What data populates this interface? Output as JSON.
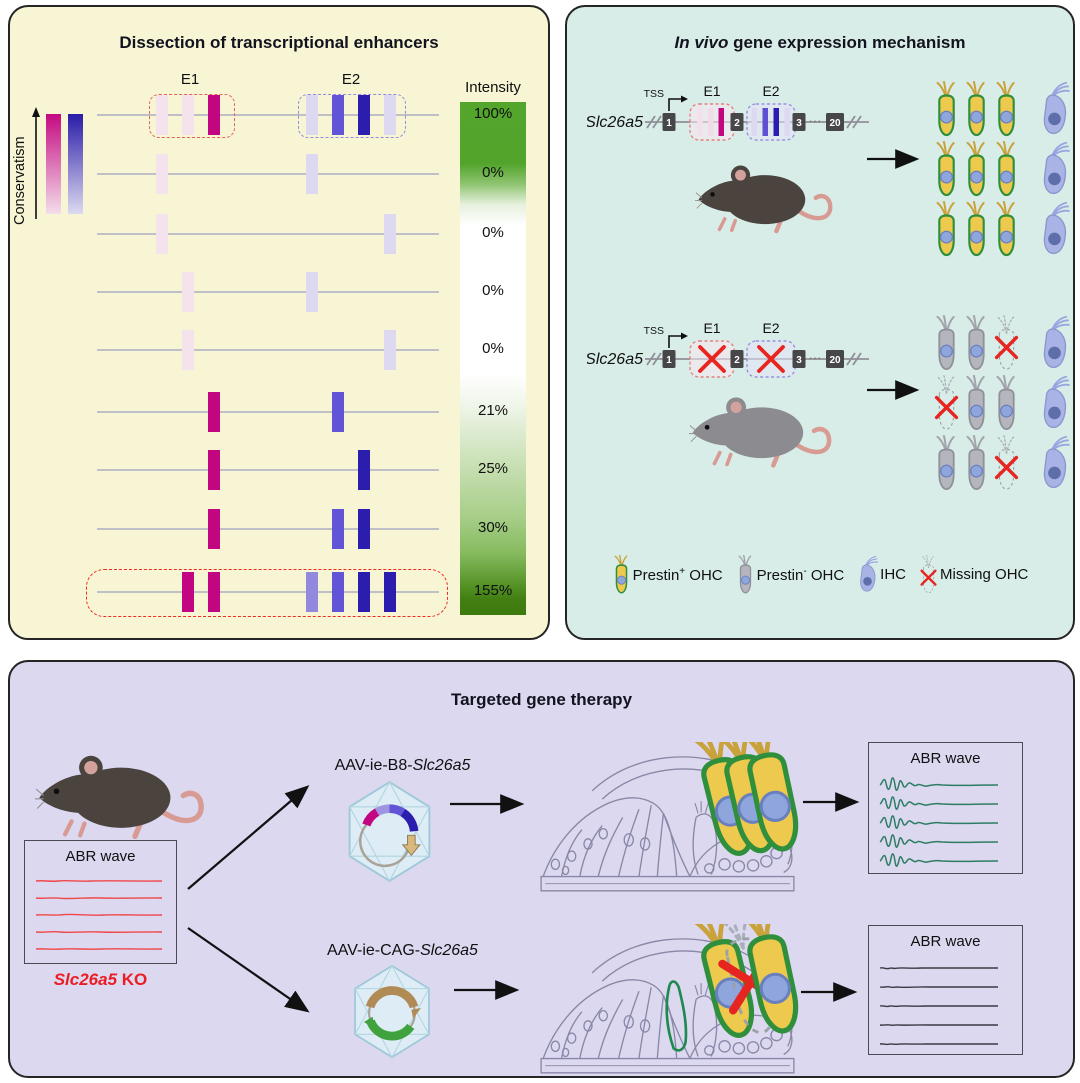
{
  "panel_enhancers": {
    "title": "Dissection of transcriptional enhancers",
    "conservatism_label": "Conservatism",
    "e1_label": "E1",
    "e2_label": "E2",
    "intensity_label": "Intensity",
    "colors": {
      "palepink": "#F4E2EC",
      "magenta": "#C20580",
      "palelav": "#DCD9F0",
      "medlav": "#9288DD",
      "medpurple": "#6154D6",
      "navy": "#2B1EAE"
    },
    "constructs": [
      {
        "intensity": "100%",
        "e1": [
          "palepink",
          "palepink",
          "magenta"
        ],
        "e2": [
          "palelav",
          "medpurple",
          "navy",
          "palelav"
        ],
        "box_e1": true,
        "box_e2": true
      },
      {
        "intensity": "0%",
        "e1": [
          "palepink",
          null,
          null
        ],
        "e2": [
          "palelav",
          null,
          null,
          null
        ]
      },
      {
        "intensity": "0%",
        "e1": [
          "palepink",
          null,
          null
        ],
        "e2": [
          null,
          null,
          null,
          "palelav"
        ]
      },
      {
        "intensity": "0%",
        "e1": [
          null,
          "palepink",
          null
        ],
        "e2": [
          "palelav",
          null,
          null,
          null
        ]
      },
      {
        "intensity": "0%",
        "e1": [
          null,
          "palepink",
          null
        ],
        "e2": [
          null,
          null,
          null,
          "palelav"
        ]
      },
      {
        "intensity": "21%",
        "e1": [
          null,
          null,
          "magenta"
        ],
        "e2": [
          null,
          "medpurple",
          null,
          null
        ]
      },
      {
        "intensity": "25%",
        "e1": [
          null,
          null,
          "magenta"
        ],
        "e2": [
          null,
          null,
          "navy",
          null
        ]
      },
      {
        "intensity": "30%",
        "e1": [
          null,
          null,
          "magenta"
        ],
        "e2": [
          null,
          "medpurple",
          "navy",
          null
        ]
      },
      {
        "intensity": "155%",
        "e1": [
          null,
          "magenta",
          "magenta"
        ],
        "e2": [
          "medlav",
          "medpurple",
          "navy",
          "navy"
        ],
        "box_full": true
      }
    ]
  },
  "panel_mechanism": {
    "title_italic": "In vivo",
    "title_rest": " gene expression mechanism",
    "gene_label": "Slc26a5",
    "tss_label": "TSS",
    "e1_label": "E1",
    "e2_label": "E2",
    "exons": [
      "1",
      "2",
      "3",
      "20"
    ],
    "dots": "···",
    "legend": {
      "prestin_pos": {
        "pre": "Prestin",
        "sup": "+",
        "post": " OHC"
      },
      "prestin_neg": {
        "pre": "Prestin",
        "sup": "-",
        "post": " OHC"
      },
      "ihc": "IHC",
      "missing": "Missing OHC"
    }
  },
  "panel_therapy": {
    "title": "Targeted gene therapy",
    "abr_left_title": "ABR wave",
    "ko_italic": "Slc26a5",
    "ko_rest": " KO",
    "aav_b8_prefix": "AAV-ie-B8-",
    "aav_b8_gene": "Slc26a5",
    "aav_cag_prefix": "AAV-ie-CAG-",
    "aav_cag_gene": "Slc26a5",
    "abr_top_title": "ABR wave",
    "abr_bottom_title": "ABR wave"
  }
}
